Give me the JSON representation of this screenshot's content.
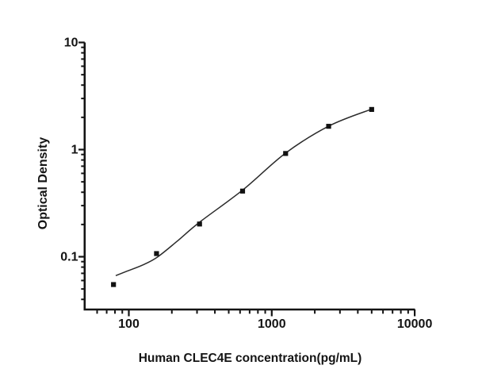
{
  "chart_data": {
    "type": "scatter",
    "title": "",
    "xlabel": "Human CLEC4E concentration(pg/mL)",
    "ylabel": "Optical Density",
    "x_scale": "log",
    "y_scale": "log",
    "xlim": [
      50,
      10000
    ],
    "ylim": [
      0.032,
      10
    ],
    "grid": false,
    "legend": null,
    "x_major_ticks": [
      100,
      1000,
      10000
    ],
    "x_major_tick_labels": [
      "100",
      "1000",
      "10000"
    ],
    "y_major_ticks": [
      0.1,
      1,
      10
    ],
    "y_major_tick_labels": [
      "0.1",
      "1",
      "10"
    ],
    "series": [
      {
        "name": "standard-points",
        "marker": "filled-square",
        "x": [
          78.125,
          156.25,
          312.5,
          625,
          1250,
          2500,
          5000
        ],
        "y": [
          0.055,
          0.107,
          0.202,
          0.41,
          0.92,
          1.65,
          2.37
        ]
      }
    ],
    "fit_curve": {
      "name": "4pl-fit",
      "x": [
        81,
        97,
        125,
        158,
        217,
        312.5,
        630,
        1253,
        2534,
        5012
      ],
      "y": [
        0.0666,
        0.0733,
        0.0837,
        0.099,
        0.139,
        0.21,
        0.422,
        0.93,
        1.67,
        2.39
      ]
    },
    "colors": {
      "axis": "#141414",
      "text": "#141414",
      "curve": "#2b2b2b",
      "marker": "#111111",
      "background": "#ffffff"
    }
  }
}
